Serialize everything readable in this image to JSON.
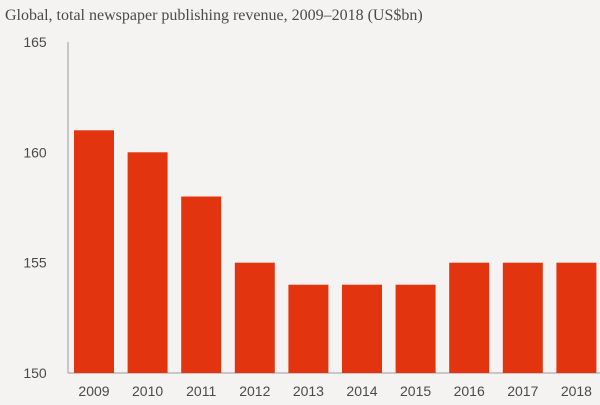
{
  "chart_data": {
    "type": "bar",
    "title": "Global, total newspaper publishing revenue, 2009–2018 (US$bn)",
    "xlabel": "",
    "ylabel": "",
    "categories": [
      "2009",
      "2010",
      "2011",
      "2012",
      "2013",
      "2014",
      "2015",
      "2016",
      "2017",
      "2018"
    ],
    "values": [
      161,
      160,
      158,
      155,
      154,
      154,
      154,
      155,
      155,
      155
    ],
    "ylim": [
      150,
      165
    ],
    "yticks": [
      150,
      155,
      160,
      165
    ],
    "bar_color": "#e2350f",
    "axis_color": "#9a9a9a",
    "grid": false,
    "legend": "none"
  }
}
